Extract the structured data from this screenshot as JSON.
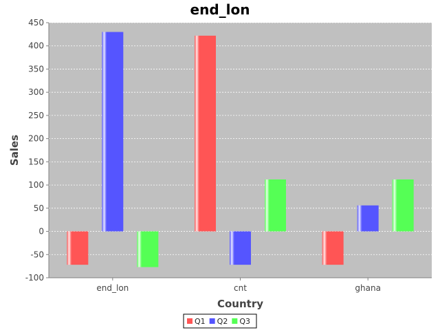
{
  "chart_data": {
    "type": "bar",
    "title": "end_lon",
    "xlabel": "Country",
    "ylabel": "Sales",
    "categories": [
      "end_lon",
      "cnt",
      "ghana"
    ],
    "series": [
      {
        "name": "Q1",
        "values": [
          -72,
          422,
          -72
        ],
        "color": "#ff5555"
      },
      {
        "name": "Q2",
        "values": [
          430,
          -72,
          56
        ],
        "color": "#5555ff"
      },
      {
        "name": "Q3",
        "values": [
          -77,
          112,
          112
        ],
        "color": "#55ff55"
      }
    ],
    "ylim": [
      -100,
      450
    ],
    "yticks": [
      -100,
      -50,
      0,
      50,
      100,
      150,
      200,
      250,
      300,
      350,
      400,
      450
    ],
    "grid": true,
    "legend": "bottom-center",
    "colors": {
      "plot_background": "#c0c0c0",
      "gridline": "#ffffff"
    }
  }
}
